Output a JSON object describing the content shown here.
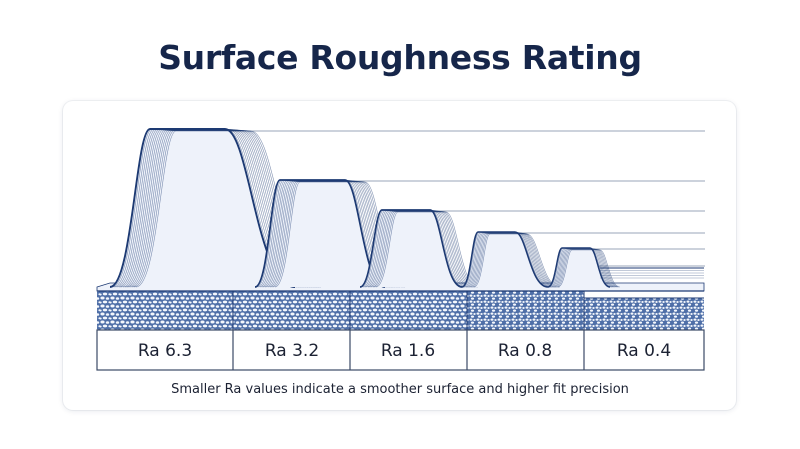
{
  "title": "Surface Roughness Rating",
  "grades": [
    {
      "label": "Ra 6.3",
      "value": 6.3
    },
    {
      "label": "Ra 3.2",
      "value": 3.2
    },
    {
      "label": "Ra 1.6",
      "value": 1.6
    },
    {
      "label": "Ra 0.8",
      "value": 0.8
    },
    {
      "label": "Ra 0.4",
      "value": 0.4
    }
  ],
  "caption": "Smaller Ra values indicate a smoother surface and higher fit precision",
  "colors": {
    "title": "#16264a",
    "line": "#1d3a73",
    "ridge_fill": "#eef2fa",
    "texture_bg": "#4f6fa8",
    "texture_pebble": "#f4f7fc",
    "guide": "#9aa6b8"
  }
}
